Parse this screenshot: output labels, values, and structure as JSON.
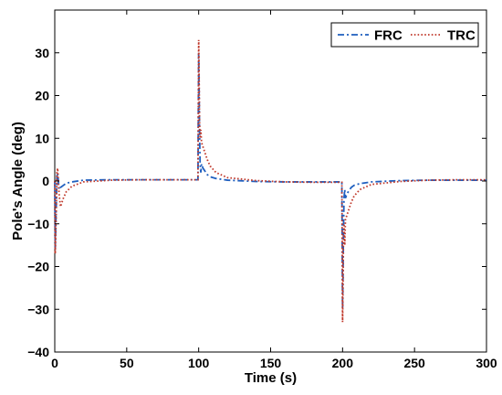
{
  "chart_data": {
    "type": "line",
    "xlabel": "Time (s)",
    "ylabel": "Pole's Angle (deg)",
    "xlim": [
      0,
      300
    ],
    "ylim": [
      -40,
      40
    ],
    "xticks": [
      0,
      50,
      100,
      150,
      200,
      250,
      300
    ],
    "yticks": [
      -40,
      -30,
      -20,
      -10,
      0,
      10,
      20,
      30
    ],
    "grid": false,
    "legend_position": "top-right",
    "series": [
      {
        "name": "FRC",
        "color": "#1f5fbf",
        "style": "dash-dot",
        "x": [
          0,
          0.3,
          0.6,
          1.0,
          1.5,
          2.0,
          3.0,
          4.0,
          6.0,
          8.0,
          12,
          20,
          40,
          60,
          80,
          99.5,
          100.0,
          100.3,
          100.6,
          101.0,
          101.5,
          102.0,
          103.0,
          104.0,
          106.0,
          108.0,
          112.0,
          120.0,
          140.0,
          160.0,
          180.0,
          199.5,
          200.0,
          200.3,
          200.6,
          201.0,
          201.5,
          202.0,
          203.0,
          204.0,
          206.0,
          208.0,
          212.0,
          220.0,
          240.0,
          260.0,
          280.0,
          300.0
        ],
        "y": [
          0,
          -16,
          -12,
          -6,
          1,
          2,
          -2,
          -1.5,
          -1,
          -0.5,
          -0.2,
          0.2,
          0.3,
          0.3,
          0.3,
          0.3,
          30,
          22,
          12,
          4,
          2,
          4,
          3,
          2.5,
          1.5,
          1,
          0.6,
          0.2,
          -0.1,
          -0.2,
          -0.2,
          -0.2,
          -30,
          -22,
          -12,
          -4,
          -2,
          -4,
          -3,
          -2.5,
          -1.5,
          -1,
          -0.6,
          -0.2,
          0.1,
          0.2,
          0.2,
          0.2
        ]
      },
      {
        "name": "TRC",
        "color": "#c0392b",
        "style": "dotted",
        "x": [
          0,
          0.3,
          0.6,
          1.0,
          1.5,
          2.0,
          3.0,
          4.0,
          6.0,
          8.0,
          12,
          20,
          40,
          60,
          80,
          99.5,
          100.0,
          100.3,
          100.6,
          101.0,
          101.5,
          102.0,
          103.0,
          104.0,
          106.0,
          108.0,
          112.0,
          120.0,
          140.0,
          160.0,
          180.0,
          199.5,
          200.0,
          200.3,
          200.6,
          201.0,
          201.5,
          202.0,
          203.0,
          204.0,
          206.0,
          208.0,
          212.0,
          220.0,
          240.0,
          260.0,
          280.0,
          300.0
        ],
        "y": [
          0,
          -17,
          -14,
          -8,
          2,
          3,
          -3,
          -6,
          -4,
          -2.5,
          -1.2,
          -0.2,
          0.2,
          0.3,
          0.3,
          0.3,
          33,
          25,
          14,
          10,
          12,
          9,
          8,
          7,
          5,
          3.5,
          2,
          0.8,
          0.1,
          -0.2,
          -0.3,
          -0.3,
          -33,
          -25,
          -14,
          -10,
          -15,
          -9,
          -8,
          -7,
          -5,
          -3.5,
          -2,
          -0.8,
          -0.1,
          0.2,
          0.3,
          0.3
        ]
      }
    ]
  }
}
